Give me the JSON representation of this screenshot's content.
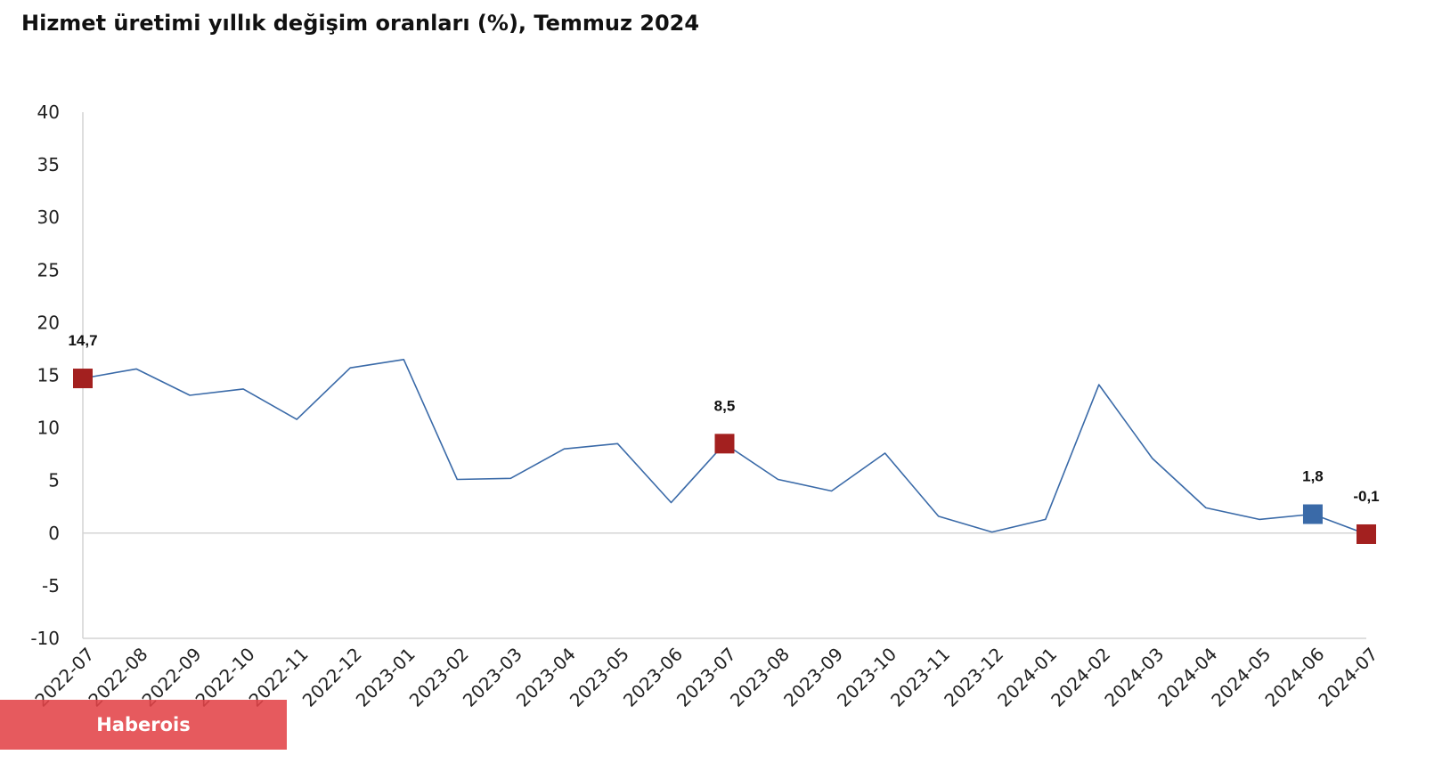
{
  "chart_data": {
    "type": "line",
    "title": "Hizmet üretimi yıllık değişim oranları (%), Temmuz 2024",
    "xlabel": "",
    "ylabel": "",
    "ylim": [
      -10,
      40
    ],
    "yticks": [
      40,
      35,
      30,
      25,
      20,
      15,
      10,
      5,
      0,
      -5,
      -10
    ],
    "categories": [
      "2022-07",
      "2022-08",
      "2022-09",
      "2022-10",
      "2022-11",
      "2022-12",
      "2023-01",
      "2023-02",
      "2023-03",
      "2023-04",
      "2023-05",
      "2023-06",
      "2023-07",
      "2023-08",
      "2023-09",
      "2023-10",
      "2023-11",
      "2023-12",
      "2024-01",
      "2024-02",
      "2024-03",
      "2024-04",
      "2024-05",
      "2024-06",
      "2024-07"
    ],
    "series": [
      {
        "name": "Hizmet üretimi yıllık değişim",
        "color": "#3a6aa8",
        "values": [
          14.7,
          15.6,
          13.1,
          13.7,
          10.8,
          15.7,
          16.5,
          5.1,
          5.2,
          8.0,
          8.5,
          2.9,
          8.5,
          5.1,
          4.0,
          7.6,
          1.6,
          0.1,
          1.3,
          14.1,
          7.1,
          2.4,
          1.3,
          1.8,
          -0.1
        ]
      }
    ],
    "highlights": [
      {
        "category": "2022-07",
        "label": "14,7",
        "color": "#a3201f"
      },
      {
        "category": "2023-07",
        "label": "8,5",
        "color": "#a3201f"
      },
      {
        "category": "2024-06",
        "label": "1,8",
        "color": "#3a6aa8"
      },
      {
        "category": "2024-07",
        "label": "-0,1",
        "color": "#a3201f"
      }
    ],
    "grid": false,
    "zero_line": true
  },
  "watermark": {
    "text": "Haberois"
  }
}
